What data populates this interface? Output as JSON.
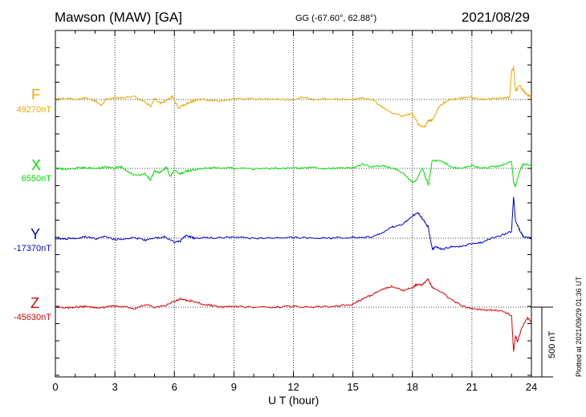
{
  "header": {
    "station": "Mawson (MAW)  [GA]",
    "coords": "GG (-67.60°,  62.88°)",
    "date": "2021/08/29"
  },
  "footer": {
    "xlabel": "U T (hour)",
    "plotted": "Plotted at 2021/09/29 01:36 UT"
  },
  "scale": {
    "label": "500 nT",
    "nT": 500
  },
  "colors": {
    "F": "#f0a800",
    "X": "#00e000",
    "Y": "#0000e0",
    "Z": "#e00000"
  },
  "chart_data": {
    "type": "line",
    "xlabel": "U T (hour)",
    "xlim": [
      0,
      24
    ],
    "xticks": [
      0,
      3,
      6,
      9,
      12,
      15,
      18,
      21,
      24
    ],
    "grid": true,
    "series": [
      {
        "name": "F",
        "baseline": "49270nT",
        "x": [
          0,
          0.5,
          1,
          1.5,
          2,
          2.3,
          2.6,
          3,
          3.5,
          4,
          4.5,
          4.8,
          5,
          5.3,
          5.6,
          5.9,
          6.2,
          6.5,
          6.8,
          7,
          7.5,
          8,
          9,
          10,
          11,
          12,
          12.5,
          13,
          14,
          15,
          15.5,
          16,
          16.5,
          17,
          17.5,
          18,
          18.3,
          18.6,
          18.8,
          19,
          19.3,
          19.6,
          20,
          20.5,
          21,
          21.5,
          22,
          22.5,
          22.9,
          23,
          23.1,
          23.2,
          23.4,
          23.6,
          23.8,
          24
        ],
        "y": [
          0,
          5,
          0,
          10,
          -10,
          -40,
          5,
          10,
          15,
          20,
          -20,
          -50,
          5,
          -25,
          -10,
          20,
          -60,
          -40,
          -20,
          -5,
          0,
          -10,
          0,
          5,
          0,
          0,
          20,
          0,
          5,
          0,
          10,
          -5,
          -60,
          -100,
          -120,
          -100,
          -180,
          -200,
          -150,
          -150,
          -60,
          -20,
          0,
          10,
          15,
          0,
          5,
          10,
          15,
          200,
          230,
          60,
          100,
          60,
          30,
          20
        ]
      },
      {
        "name": "X",
        "baseline": "6550nT",
        "x": [
          0,
          0.5,
          1,
          1.5,
          2,
          2.5,
          3,
          3.3,
          3.6,
          4,
          4.5,
          4.8,
          5,
          5.3,
          5.6,
          5.8,
          6,
          6.3,
          6.6,
          7,
          7.5,
          8,
          9,
          10,
          11,
          12,
          13,
          14,
          15,
          15.5,
          16,
          16.5,
          17,
          17.5,
          18,
          18.2,
          18.5,
          18.8,
          19,
          19.5,
          20,
          20.5,
          21,
          21.5,
          22,
          22.5,
          23,
          23.1,
          23.2,
          23.4,
          23.6,
          24
        ],
        "y": [
          0,
          -5,
          0,
          5,
          0,
          10,
          0,
          15,
          -20,
          -50,
          -40,
          -80,
          -20,
          -30,
          10,
          -60,
          -10,
          -40,
          -20,
          -10,
          0,
          5,
          0,
          -5,
          0,
          0,
          5,
          0,
          5,
          30,
          10,
          20,
          0,
          -30,
          -100,
          -80,
          0,
          -120,
          60,
          50,
          10,
          0,
          20,
          0,
          10,
          20,
          50,
          -100,
          -130,
          -20,
          30,
          20
        ]
      },
      {
        "name": "Y",
        "baseline": "-17370nT",
        "x": [
          0,
          0.5,
          1,
          1.5,
          2,
          2.5,
          3,
          3.5,
          4,
          4.5,
          5,
          5.5,
          6,
          6.3,
          6.6,
          7,
          7.5,
          8,
          9,
          10,
          11,
          12,
          13,
          14,
          15,
          16,
          16.5,
          17,
          17.5,
          18,
          18.3,
          18.6,
          18.8,
          19,
          19.2,
          19.5,
          20,
          20.5,
          21,
          21.5,
          22,
          22.5,
          23,
          23.1,
          23.2,
          23.4,
          23.6,
          24
        ],
        "y": [
          0,
          -5,
          0,
          10,
          -5,
          10,
          -10,
          -5,
          5,
          -15,
          0,
          10,
          -30,
          -20,
          20,
          0,
          5,
          0,
          5,
          0,
          0,
          5,
          0,
          0,
          5,
          10,
          40,
          80,
          100,
          160,
          180,
          120,
          80,
          -80,
          -60,
          -80,
          -60,
          -60,
          -40,
          -30,
          0,
          20,
          50,
          300,
          120,
          60,
          10,
          0
        ]
      },
      {
        "name": "Z",
        "baseline": "-45630nT",
        "x": [
          0,
          0.5,
          1,
          1.5,
          2,
          2.5,
          3,
          3.5,
          4,
          4.5,
          5,
          5.5,
          6,
          6.3,
          6.6,
          7,
          7.5,
          8,
          8.5,
          9,
          10,
          11,
          12,
          13,
          14,
          15,
          15.5,
          16,
          16.5,
          17,
          17.5,
          18,
          18.2,
          18.5,
          18.8,
          19,
          19.5,
          20,
          20.5,
          21,
          21.5,
          22,
          22.5,
          23,
          23.1,
          23.2,
          23.3,
          23.5,
          23.8,
          24
        ],
        "y": [
          0,
          -5,
          0,
          5,
          -5,
          0,
          10,
          0,
          -10,
          20,
          0,
          10,
          40,
          60,
          50,
          40,
          20,
          10,
          0,
          5,
          0,
          0,
          5,
          0,
          5,
          20,
          60,
          90,
          130,
          150,
          120,
          140,
          160,
          160,
          200,
          140,
          100,
          50,
          10,
          -10,
          -20,
          -20,
          -30,
          -60,
          -320,
          -200,
          -250,
          -150,
          -80,
          -100
        ]
      }
    ]
  }
}
